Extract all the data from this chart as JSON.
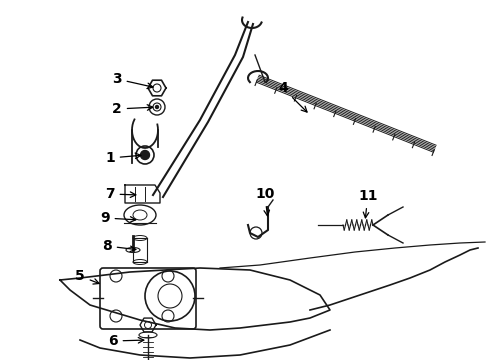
{
  "bg_color": "#ffffff",
  "line_color": "#1a1a1a",
  "figsize": [
    4.9,
    3.6
  ],
  "dpi": 100,
  "xlim": [
    0,
    490
  ],
  "ylim": [
    0,
    360
  ]
}
